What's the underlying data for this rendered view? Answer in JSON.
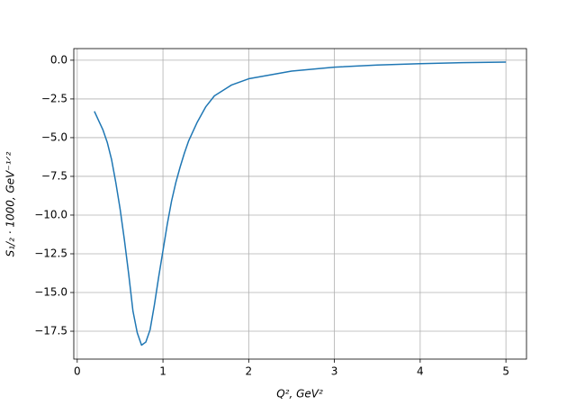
{
  "chart_data": {
    "type": "line",
    "xlabel": "Q², GeV²",
    "ylabel": "S₁/₂ · 1000, GeV⁻¹ᐟ²",
    "x": [
      0.2,
      0.25,
      0.3,
      0.35,
      0.4,
      0.45,
      0.5,
      0.55,
      0.6,
      0.65,
      0.7,
      0.75,
      0.8,
      0.85,
      0.9,
      0.95,
      1.0,
      1.05,
      1.1,
      1.15,
      1.2,
      1.25,
      1.3,
      1.4,
      1.5,
      1.6,
      1.8,
      2.0,
      2.5,
      3.0,
      3.5,
      4.0,
      4.5,
      5.0
    ],
    "values": [
      -3.3,
      -3.9,
      -4.5,
      -5.3,
      -6.4,
      -7.9,
      -9.6,
      -11.6,
      -13.8,
      -16.2,
      -17.6,
      -18.4,
      -18.2,
      -17.4,
      -15.8,
      -14.0,
      -12.3,
      -10.6,
      -9.1,
      -7.9,
      -6.9,
      -6.0,
      -5.2,
      -4.0,
      -3.0,
      -2.3,
      -1.6,
      -1.2,
      -0.7,
      -0.45,
      -0.31,
      -0.22,
      -0.16,
      -0.12
    ],
    "color": "#1f77b4",
    "xlim": [
      -0.04,
      5.24
    ],
    "ylim": [
      -19.3,
      0.75
    ],
    "xticks": [
      0,
      1,
      2,
      3,
      4,
      5
    ],
    "yticks": [
      {
        "value": 0,
        "label": "0.0"
      },
      {
        "value": -2.5,
        "label": "−2.5"
      },
      {
        "value": -5,
        "label": "−5.0"
      },
      {
        "value": -7.5,
        "label": "−7.5"
      },
      {
        "value": -10,
        "label": "−10.0"
      },
      {
        "value": -12.5,
        "label": "−12.5"
      },
      {
        "value": -15,
        "label": "−15.0"
      },
      {
        "value": -17.5,
        "label": "−17.5"
      }
    ],
    "grid": true
  }
}
